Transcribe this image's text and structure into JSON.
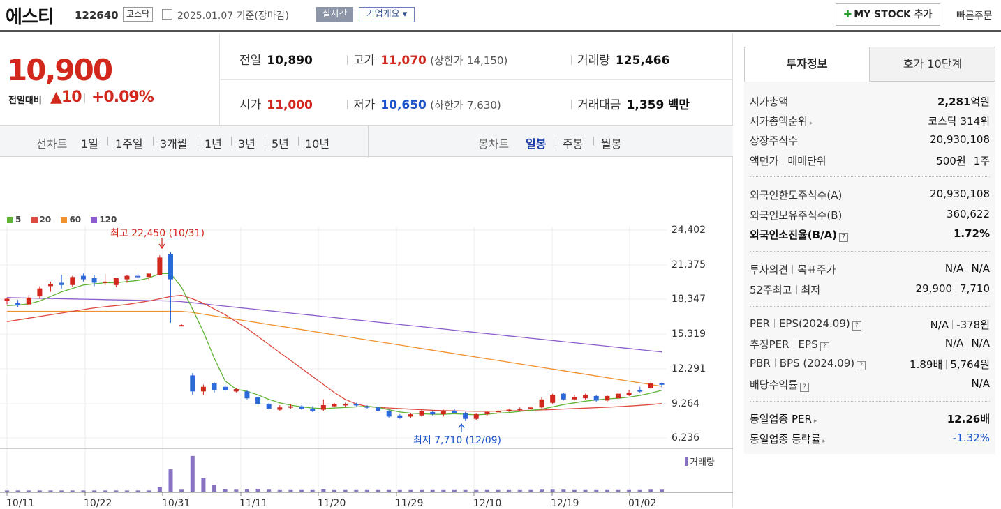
{
  "header": {
    "stock_name": "에스티",
    "stock_code": "122640",
    "market": "코스닥",
    "date_text": "2025.01.07 기준(장마감)",
    "realtime": "실시간",
    "company": "기업개요 ▾",
    "my_stock": "MY STOCK 추가",
    "my_plus": "✚",
    "quick_order": "빠른주문"
  },
  "price": {
    "current": "10,900",
    "change_label": "전일대비",
    "change_value": "▲10",
    "change_pct": "+0.09%"
  },
  "summary": {
    "prev_label": "전일",
    "prev": "10,890",
    "high_label": "고가",
    "high": "11,070",
    "upper_label": "(상한가",
    "upper": "14,150)",
    "volume_label": "거래량",
    "volume": "125,466",
    "open_label": "시가",
    "open": "11,000",
    "low_label": "저가",
    "low": "10,650",
    "lower_label": "(하한가",
    "lower": "7,630)",
    "amount_label": "거래대금",
    "amount": "1,359",
    "amount_unit": "백만"
  },
  "chart_tabs": {
    "line_label": "선차트",
    "periods": [
      "1일",
      "1주일",
      "3개월",
      "1년",
      "3년",
      "5년",
      "10년"
    ],
    "candle_label": "봉차트",
    "candles": [
      "일봉",
      "주봉",
      "월봉"
    ]
  },
  "chart_data": {
    "type": "candlestick",
    "legend": [
      "5",
      "20",
      "60",
      "120"
    ],
    "colors": {
      "ma5": "#5fb435",
      "ma20": "#dd4a40",
      "ma60": "#f0922e",
      "ma120": "#8d5dcd",
      "up": "#d2271d",
      "down": "#2d6ad9",
      "volume": "#8873c3"
    },
    "y_ticks": [
      "24,402",
      "21,375",
      "18,347",
      "15,319",
      "12,291",
      "9,264",
      "6,236"
    ],
    "x_ticks": [
      "10/11",
      "10/22",
      "10/31",
      "11/11",
      "11/20",
      "11/29",
      "12/10",
      "12/19",
      "01/02"
    ],
    "annotation_high": "최고 22,450 (10/31)",
    "annotation_low": "최저 7,710 (12/09)",
    "volume_label": "거래량",
    "candles": [
      {
        "o": 18200,
        "h": 18500,
        "l": 17900,
        "c": 18400
      },
      {
        "o": 18000,
        "h": 18300,
        "l": 17700,
        "c": 17900
      },
      {
        "o": 17900,
        "h": 18700,
        "l": 17800,
        "c": 18500
      },
      {
        "o": 18600,
        "h": 19500,
        "l": 18400,
        "c": 19300
      },
      {
        "o": 19500,
        "h": 19900,
        "l": 19000,
        "c": 19700
      },
      {
        "o": 19800,
        "h": 20500,
        "l": 19300,
        "c": 19600
      },
      {
        "o": 19600,
        "h": 20400,
        "l": 19400,
        "c": 20300
      },
      {
        "o": 20400,
        "h": 20600,
        "l": 19900,
        "c": 20100
      },
      {
        "o": 20200,
        "h": 20500,
        "l": 19500,
        "c": 19800
      },
      {
        "o": 19800,
        "h": 20600,
        "l": 19600,
        "c": 19900
      },
      {
        "o": 19600,
        "h": 20100,
        "l": 19400,
        "c": 20200
      },
      {
        "o": 20100,
        "h": 20500,
        "l": 19800,
        "c": 20400
      },
      {
        "o": 20400,
        "h": 20700,
        "l": 20000,
        "c": 20300
      },
      {
        "o": 20300,
        "h": 20600,
        "l": 20000,
        "c": 20600
      },
      {
        "o": 20500,
        "h": 22200,
        "l": 20500,
        "c": 22000
      },
      {
        "o": 22300,
        "h": 22450,
        "l": 16300,
        "c": 20100
      },
      {
        "o": 16100,
        "h": 16200,
        "l": 16000,
        "c": 16100
      },
      {
        "o": 11700,
        "h": 11900,
        "l": 10000,
        "c": 10300
      },
      {
        "o": 10300,
        "h": 10900,
        "l": 10000,
        "c": 10700
      },
      {
        "o": 11000,
        "h": 11100,
        "l": 10200,
        "c": 10400
      },
      {
        "o": 10700,
        "h": 10900,
        "l": 10300,
        "c": 10400
      },
      {
        "o": 10300,
        "h": 10600,
        "l": 10200,
        "c": 10500
      },
      {
        "o": 10300,
        "h": 10400,
        "l": 9600,
        "c": 9700
      },
      {
        "o": 9800,
        "h": 9900,
        "l": 9100,
        "c": 9200
      },
      {
        "o": 9200,
        "h": 9300,
        "l": 8700,
        "c": 8800
      },
      {
        "o": 8700,
        "h": 9100,
        "l": 8600,
        "c": 8900
      },
      {
        "o": 9000,
        "h": 9200,
        "l": 8800,
        "c": 9000
      },
      {
        "o": 9000,
        "h": 9100,
        "l": 8700,
        "c": 8800
      },
      {
        "o": 8800,
        "h": 9000,
        "l": 8500,
        "c": 8600
      },
      {
        "o": 8700,
        "h": 9600,
        "l": 8600,
        "c": 9100
      },
      {
        "o": 9000,
        "h": 9300,
        "l": 8900,
        "c": 9200
      },
      {
        "o": 9100,
        "h": 9300,
        "l": 8900,
        "c": 9200
      },
      {
        "o": 9200,
        "h": 9300,
        "l": 9000,
        "c": 9100
      },
      {
        "o": 9000,
        "h": 9100,
        "l": 8800,
        "c": 8900
      },
      {
        "o": 8900,
        "h": 9000,
        "l": 8500,
        "c": 8600
      },
      {
        "o": 8600,
        "h": 8700,
        "l": 8000,
        "c": 8100
      },
      {
        "o": 8200,
        "h": 8300,
        "l": 7900,
        "c": 8000
      },
      {
        "o": 8100,
        "h": 8400,
        "l": 8000,
        "c": 8300
      },
      {
        "o": 8200,
        "h": 8700,
        "l": 8100,
        "c": 8600
      },
      {
        "o": 8500,
        "h": 8600,
        "l": 8200,
        "c": 8300
      },
      {
        "o": 8300,
        "h": 8700,
        "l": 8100,
        "c": 8600
      },
      {
        "o": 8600,
        "h": 8800,
        "l": 8400,
        "c": 8400
      },
      {
        "o": 8400,
        "h": 8500,
        "l": 7710,
        "c": 7900
      },
      {
        "o": 7900,
        "h": 8400,
        "l": 7800,
        "c": 8300
      },
      {
        "o": 8300,
        "h": 8600,
        "l": 8200,
        "c": 8500
      },
      {
        "o": 8500,
        "h": 8700,
        "l": 8400,
        "c": 8600
      },
      {
        "o": 8600,
        "h": 8800,
        "l": 8500,
        "c": 8700
      },
      {
        "o": 8700,
        "h": 8900,
        "l": 8600,
        "c": 8800
      },
      {
        "o": 8800,
        "h": 9000,
        "l": 8600,
        "c": 8900
      },
      {
        "o": 8900,
        "h": 9800,
        "l": 8800,
        "c": 9600
      },
      {
        "o": 9300,
        "h": 10100,
        "l": 9200,
        "c": 10000
      },
      {
        "o": 10100,
        "h": 10200,
        "l": 9500,
        "c": 9600
      },
      {
        "o": 9600,
        "h": 10000,
        "l": 9500,
        "c": 9800
      },
      {
        "o": 9700,
        "h": 10100,
        "l": 9600,
        "c": 10000
      },
      {
        "o": 9900,
        "h": 10000,
        "l": 9400,
        "c": 9500
      },
      {
        "o": 9500,
        "h": 10000,
        "l": 9400,
        "c": 9900
      },
      {
        "o": 9700,
        "h": 10200,
        "l": 9600,
        "c": 10100
      },
      {
        "o": 10000,
        "h": 10400,
        "l": 9900,
        "c": 10200
      },
      {
        "o": 10400,
        "h": 10700,
        "l": 10200,
        "c": 10300
      },
      {
        "o": 10600,
        "h": 11200,
        "l": 10500,
        "c": 11000
      },
      {
        "o": 11000,
        "h": 11070,
        "l": 10650,
        "c": 10900
      }
    ],
    "ma5": [
      17800,
      17850,
      17950,
      18200,
      18600,
      19000,
      19300,
      19600,
      19700,
      19800,
      19800,
      19900,
      20000,
      20200,
      20600,
      20600,
      19400,
      17500,
      15500,
      13200,
      11200,
      10500,
      10300,
      10000,
      9600,
      9300,
      9100,
      8950,
      8850,
      8800,
      8850,
      8900,
      8950,
      9000,
      8900,
      8700,
      8500,
      8400,
      8350,
      8300,
      8300,
      8350,
      8300,
      8250,
      8300,
      8400,
      8450,
      8550,
      8650,
      8750,
      8950,
      9150,
      9300,
      9450,
      9550,
      9650,
      9700,
      9800,
      9950,
      10150,
      10400
    ],
    "ma20": [
      16400,
      16550,
      16700,
      16850,
      17000,
      17150,
      17300,
      17450,
      17600,
      17700,
      17800,
      17900,
      18050,
      18200,
      18400,
      18600,
      18700,
      18400,
      18000,
      17500,
      17000,
      16400,
      15800,
      15100,
      14400,
      13700,
      13000,
      12300,
      11600,
      10900,
      10200,
      9600,
      9200,
      9000,
      8900,
      8850,
      8800,
      8750,
      8700,
      8650,
      8620,
      8600,
      8580,
      8560,
      8560,
      8580,
      8600,
      8620,
      8650,
      8680,
      8720,
      8760,
      8800,
      8840,
      8880,
      8920,
      8970,
      9020,
      9080,
      9150,
      9250
    ],
    "ma60": [
      17300,
      17300,
      17300,
      17300,
      17300,
      17300,
      17300,
      17300,
      17300,
      17300,
      17300,
      17300,
      17300,
      17300,
      17300,
      17300,
      17300,
      17200,
      17050,
      16900,
      16750,
      16600,
      16450,
      16300,
      16150,
      16000,
      15850,
      15700,
      15550,
      15400,
      15250,
      15100,
      14950,
      14800,
      14650,
      14500,
      14350,
      14200,
      14050,
      13900,
      13750,
      13600,
      13450,
      13300,
      13150,
      13000,
      12850,
      12700,
      12550,
      12400,
      12250,
      12100,
      11950,
      11800,
      11650,
      11500,
      11350,
      11200,
      11050,
      10900,
      10750
    ],
    "ma120": [
      18500,
      18480,
      18460,
      18440,
      18420,
      18400,
      18380,
      18360,
      18340,
      18320,
      18300,
      18280,
      18260,
      18240,
      18220,
      18200,
      18150,
      18050,
      17950,
      17850,
      17750,
      17650,
      17550,
      17450,
      17350,
      17250,
      17150,
      17050,
      16950,
      16850,
      16750,
      16650,
      16550,
      16450,
      16350,
      16250,
      16150,
      16050,
      15950,
      15850,
      15750,
      15650,
      15550,
      15450,
      15350,
      15250,
      15150,
      15050,
      14950,
      14850,
      14750,
      14650,
      14550,
      14450,
      14350,
      14250,
      14150,
      14050,
      13950,
      13850,
      13750
    ],
    "volume": [
      0.03,
      0.03,
      0.03,
      0.03,
      0.03,
      0.03,
      0.03,
      0.03,
      0.03,
      0.03,
      0.03,
      0.03,
      0.03,
      0.03,
      0.12,
      0.58,
      0.05,
      0.93,
      0.35,
      0.18,
      0.06,
      0.05,
      0.06,
      0.07,
      0.05,
      0.04,
      0.04,
      0.04,
      0.04,
      0.06,
      0.04,
      0.04,
      0.04,
      0.04,
      0.04,
      0.04,
      0.04,
      0.04,
      0.04,
      0.04,
      0.04,
      0.04,
      0.04,
      0.04,
      0.04,
      0.04,
      0.04,
      0.04,
      0.04,
      0.05,
      0.05,
      0.05,
      0.04,
      0.04,
      0.04,
      0.04,
      0.04,
      0.04,
      0.04,
      0.05,
      0.05
    ]
  },
  "right_tabs": {
    "active": "투자정보",
    "inactive": "호가 10단계"
  },
  "invest": {
    "market_cap_label": "시가총액",
    "market_cap": "2,281",
    "market_cap_unit": "억원",
    "rank_label": "시가총액순위",
    "rank": "코스닥 314위",
    "shares_label": "상장주식수",
    "shares": "20,930,108",
    "face_label": "액면가",
    "face_label2": "매매단위",
    "face": "500원",
    "unit": "1주",
    "foreign_limit_label": "외국인한도주식수(A)",
    "foreign_limit": "20,930,108",
    "foreign_hold_label": "외국인보유주식수(B)",
    "foreign_hold": "360,622",
    "foreign_ratio_label": "외국인소진율(B/A)",
    "foreign_ratio": "1.72%",
    "opinion_label": "투자의견",
    "target_label": "목표주가",
    "opinion": "N/A",
    "target": "N/A",
    "w52_high_label": "52주최고",
    "w52_low_label": "최저",
    "w52_high": "29,900",
    "w52_low": "7,710",
    "per_label": "PER",
    "eps_label": "EPS(2024.09)",
    "per": "N/A",
    "eps": "-378원",
    "est_per_label": "추정PER",
    "est_eps_label": "EPS",
    "est_per": "N/A",
    "est_eps": "N/A",
    "pbr_label": "PBR",
    "bps_label": "BPS (2024.09)",
    "pbr": "1.89배",
    "bps": "5,764원",
    "div_label": "배당수익률",
    "div": "N/A",
    "ind_per_label": "동일업종 PER",
    "ind_per": "12.26배",
    "ind_rate_label": "동일업종 등락률",
    "ind_rate": "-1.32%"
  }
}
